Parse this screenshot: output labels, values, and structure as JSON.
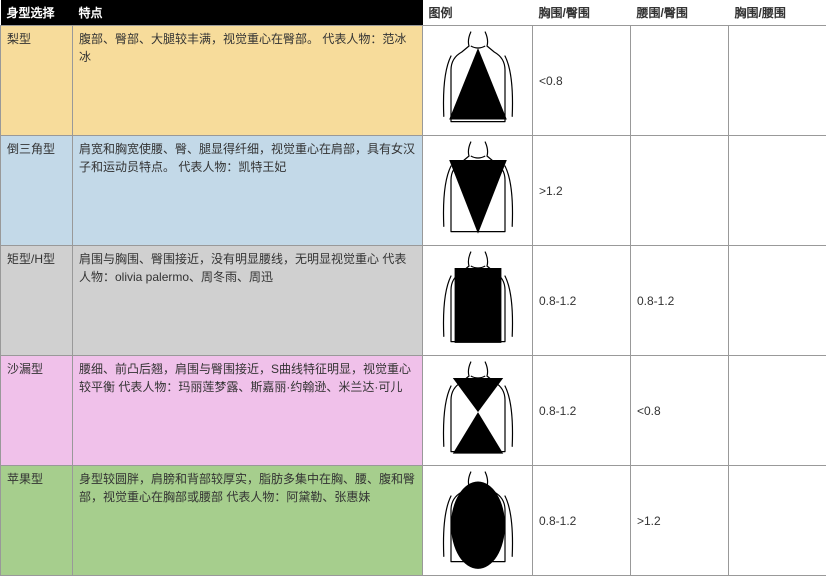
{
  "header": {
    "type": "身型选择",
    "feature": "特点",
    "diagram": "图例",
    "bust_hip": "胸围/臀围",
    "waist_hip": "腰围/臀围",
    "bust_waist": "胸围/腰围"
  },
  "colors": {
    "header_dark_bg": "#000000",
    "header_dark_fg": "#ffffff",
    "header_light_bg": "#ffffff",
    "header_light_fg": "#333333",
    "border": "#999999",
    "body_outline": "#000000",
    "shape_fill": "#000000"
  },
  "rows": [
    {
      "id": "pear",
      "type_label": "梨型",
      "description": "腹部、臀部、大腿较丰满，视觉重心在臀部。 代表人物：范冰冰",
      "row_bg": "#f7dc9b",
      "bust_hip": "<0.8",
      "waist_hip": "",
      "bust_waist": "",
      "shape": "triangle-down-wide"
    },
    {
      "id": "inverted",
      "type_label": "倒三角型",
      "description": "肩宽和胸宽使腰、臀、腿显得纤细，视觉重心在肩部，具有女汉子和运动员特点。 代表人物：凯特王妃",
      "row_bg": "#c3d9e8",
      "bust_hip": ">1.2",
      "waist_hip": "",
      "bust_waist": "",
      "shape": "triangle-up-wide"
    },
    {
      "id": "rect",
      "type_label": "矩型/H型",
      "description": "肩围与胸围、臀围接近，没有明显腰线，无明显视觉重心  代表人物：olivia palermo、周冬雨、周迅",
      "row_bg": "#d0d0d0",
      "bust_hip": "0.8-1.2",
      "waist_hip": "0.8-1.2",
      "bust_waist": "",
      "shape": "rectangle"
    },
    {
      "id": "hourglass",
      "type_label": "沙漏型",
      "description": "腰细、前凸后翘，肩围与臀围接近，S曲线特征明显，视觉重心较平衡  代表人物：玛丽莲梦露、斯嘉丽·约翰逊、米兰达·可儿",
      "row_bg": "#f0c1ea",
      "bust_hip": "0.8-1.2",
      "waist_hip": "<0.8",
      "bust_waist": "",
      "shape": "hourglass"
    },
    {
      "id": "apple",
      "type_label": "苹果型",
      "description": "身型较圆胖，肩膀和背部较厚实，脂肪多集中在胸、腰、腹和臀部，视觉重心在胸部或腰部  代表人物：阿黛勒、张惠妹",
      "row_bg": "#a6ce8d",
      "bust_hip": "0.8-1.2",
      "waist_hip": ">1.2",
      "bust_waist": "",
      "shape": "oval"
    }
  ],
  "diagram_style": {
    "width": 90,
    "height": 104,
    "body_stroke": "#000000",
    "body_stroke_width": 1.2,
    "shape_fill": "#000000"
  }
}
